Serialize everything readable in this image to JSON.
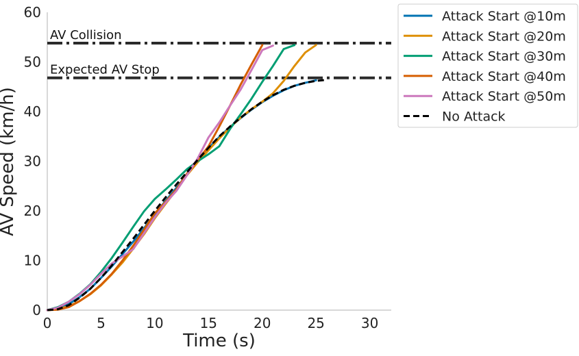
{
  "chart_data": {
    "type": "line",
    "xlabel": "Time (s)",
    "ylabel": "AV Speed (km/h)",
    "xlim": [
      0,
      32
    ],
    "ylim": [
      0,
      60
    ],
    "xticks": [
      "0",
      "5",
      "10",
      "15",
      "20",
      "25",
      "30"
    ],
    "yticks": [
      "0",
      "10",
      "20",
      "30",
      "40",
      "50",
      "60"
    ],
    "grid": false,
    "legend_position": "outside top-right",
    "reference_lines": [
      {
        "label": "AV Collision",
        "y": 53.8,
        "color": "#2b2b2b"
      },
      {
        "label": "Expected AV Stop",
        "y": 46.8,
        "color": "#2b2b2b"
      }
    ],
    "series": [
      {
        "name": "Attack Start @10m",
        "color": "#0173b2",
        "style": "solid",
        "x": [
          0,
          1,
          2,
          3,
          4,
          5,
          6,
          7,
          8,
          9,
          10,
          11,
          12,
          13,
          14,
          15,
          16,
          17,
          18,
          19,
          20,
          21,
          22,
          23,
          24,
          25
        ],
        "y": [
          0,
          0.3,
          1.2,
          2.6,
          4.3,
          6.5,
          8.8,
          11.3,
          13.8,
          16.5,
          19.3,
          22.0,
          24.6,
          27.3,
          30.2,
          32.6,
          34.9,
          36.9,
          38.7,
          40.4,
          41.9,
          43.2,
          44.3,
          45.2,
          45.8,
          46.3
        ]
      },
      {
        "name": "Attack Start @20m",
        "color": "#de8f05",
        "style": "solid",
        "x": [
          0,
          1,
          2,
          3,
          4,
          5,
          6,
          7,
          8,
          9,
          10,
          11,
          12,
          13,
          14,
          15,
          16,
          17,
          18,
          19,
          20,
          21,
          22,
          23,
          24,
          25
        ],
        "y": [
          0,
          0.2,
          0.8,
          1.8,
          3.2,
          5.0,
          7.2,
          9.6,
          12.4,
          15.3,
          18.5,
          21.4,
          24.2,
          27.2,
          29.8,
          32.2,
          34.6,
          36.8,
          38.8,
          40.5,
          42.0,
          43.7,
          46.2,
          49.2,
          51.9,
          53.4
        ]
      },
      {
        "name": "Attack Start @30m",
        "color": "#029e73",
        "style": "solid",
        "x": [
          0,
          1,
          2,
          3,
          4,
          5,
          6,
          7,
          8,
          9,
          10,
          11,
          12,
          13,
          14,
          15,
          16,
          17,
          18,
          19,
          20,
          21,
          22,
          23
        ],
        "y": [
          0,
          0.6,
          1.7,
          3.3,
          5.2,
          7.7,
          10.5,
          13.6,
          16.8,
          19.9,
          22.4,
          24.3,
          26.3,
          28.4,
          30.0,
          31.4,
          33.0,
          36.5,
          39.5,
          42.6,
          46.0,
          49.2,
          52.6,
          53.4
        ]
      },
      {
        "name": "Attack Start @40m",
        "color": "#d55e00",
        "style": "solid",
        "x": [
          0,
          1,
          2,
          3,
          4,
          5,
          6,
          7,
          8,
          9,
          10,
          11,
          12,
          13,
          14,
          15,
          16,
          17,
          18,
          19,
          20
        ],
        "y": [
          0,
          0.1,
          0.6,
          1.8,
          3.3,
          5.1,
          7.3,
          10.0,
          13.0,
          16.2,
          19.5,
          21.8,
          24.3,
          27.5,
          30.2,
          33.0,
          37.0,
          41.2,
          45.5,
          49.5,
          53.4
        ]
      },
      {
        "name": "Attack Start @50m",
        "color": "#cc78bc",
        "style": "solid",
        "x": [
          0,
          1,
          2,
          3,
          4,
          5,
          6,
          7,
          8,
          9,
          10,
          11,
          12,
          13,
          14,
          15,
          16,
          17,
          18,
          19,
          20,
          21
        ],
        "y": [
          0,
          0.5,
          1.7,
          3.2,
          5.1,
          7.3,
          9.4,
          10.8,
          12.3,
          15.5,
          18.7,
          21.6,
          24.0,
          27.2,
          30.6,
          34.8,
          37.8,
          41.2,
          44.5,
          48.4,
          52.4,
          53.3
        ]
      },
      {
        "name": "No Attack",
        "color": "#000000",
        "style": "dashed",
        "x": [
          0,
          1,
          2,
          3,
          4,
          5,
          6,
          7,
          8,
          9,
          10,
          11,
          12,
          13,
          14,
          15,
          16,
          17,
          18,
          19,
          20,
          21,
          22,
          23,
          24,
          25,
          26
        ],
        "y": [
          0,
          0.2,
          1.0,
          2.5,
          4.3,
          6.5,
          9.0,
          11.7,
          14.4,
          17.2,
          20.0,
          22.7,
          25.3,
          27.8,
          30.3,
          32.7,
          35.0,
          37.0,
          38.8,
          40.5,
          42.0,
          43.3,
          44.4,
          45.2,
          45.8,
          46.2,
          46.4
        ]
      }
    ]
  }
}
